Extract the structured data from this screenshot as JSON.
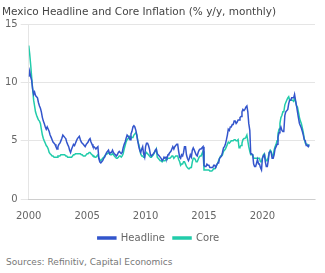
{
  "chart_data": {
    "type": "line",
    "title": "Mexico Headline and Core Inflation (% y/y, monthly)",
    "source": "Sources: Refinitiv, Capital Economics",
    "xlim": [
      2000.0,
      2024.5
    ],
    "xticks": [
      2000,
      2005,
      2010,
      2015,
      2020
    ],
    "ylim": [
      0,
      15
    ],
    "yticks": [
      0,
      5,
      10,
      15
    ],
    "grid": "y",
    "legend": "bottom",
    "x": [
      2000.0,
      2000.08,
      2000.17,
      2000.25,
      2000.33,
      2000.42,
      2000.5,
      2000.58,
      2000.67,
      2000.75,
      2000.83,
      2000.92,
      2001.0,
      2001.08,
      2001.17,
      2001.25,
      2001.33,
      2001.42,
      2001.5,
      2001.58,
      2001.67,
      2001.75,
      2001.83,
      2001.92,
      2002.0,
      2002.08,
      2002.17,
      2002.25,
      2002.33,
      2002.42,
      2002.5,
      2002.58,
      2002.67,
      2002.75,
      2002.83,
      2002.92,
      2003.0,
      2003.08,
      2003.17,
      2003.25,
      2003.33,
      2003.42,
      2003.5,
      2003.58,
      2003.67,
      2003.75,
      2003.83,
      2003.92,
      2004.0,
      2004.08,
      2004.17,
      2004.25,
      2004.33,
      2004.42,
      2004.5,
      2004.58,
      2004.67,
      2004.75,
      2004.83,
      2004.92,
      2005.0,
      2005.08,
      2005.17,
      2005.25,
      2005.33,
      2005.42,
      2005.5,
      2005.58,
      2005.67,
      2005.75,
      2005.83,
      2005.92,
      2006.0,
      2006.08,
      2006.17,
      2006.25,
      2006.33,
      2006.42,
      2006.5,
      2006.58,
      2006.67,
      2006.75,
      2006.83,
      2006.92,
      2007.0,
      2007.08,
      2007.17,
      2007.25,
      2007.33,
      2007.42,
      2007.5,
      2007.58,
      2007.67,
      2007.75,
      2007.83,
      2007.92,
      2008.0,
      2008.08,
      2008.17,
      2008.25,
      2008.33,
      2008.42,
      2008.5,
      2008.58,
      2008.67,
      2008.75,
      2008.83,
      2008.92,
      2009.0,
      2009.08,
      2009.17,
      2009.25,
      2009.33,
      2009.42,
      2009.5,
      2009.58,
      2009.67,
      2009.75,
      2009.83,
      2009.92,
      2010.0,
      2010.08,
      2010.17,
      2010.25,
      2010.33,
      2010.42,
      2010.5,
      2010.58,
      2010.67,
      2010.75,
      2010.83,
      2010.92,
      2011.0,
      2011.08,
      2011.17,
      2011.25,
      2011.33,
      2011.42,
      2011.5,
      2011.58,
      2011.67,
      2011.75,
      2011.83,
      2011.92,
      2012.0,
      2012.08,
      2012.17,
      2012.25,
      2012.33,
      2012.42,
      2012.5,
      2012.58,
      2012.67,
      2012.75,
      2012.83,
      2012.92,
      2013.0,
      2013.08,
      2013.17,
      2013.25,
      2013.33,
      2013.42,
      2013.5,
      2013.58,
      2013.67,
      2013.75,
      2013.83,
      2013.92,
      2014.0,
      2014.08,
      2014.17,
      2014.25,
      2014.33,
      2014.42,
      2014.5,
      2014.58,
      2014.67,
      2014.75,
      2014.83,
      2014.92,
      2015.0,
      2015.08,
      2015.17,
      2015.25,
      2015.33,
      2015.42,
      2015.5,
      2015.58,
      2015.67,
      2015.75,
      2015.83,
      2015.92,
      2016.0,
      2016.08,
      2016.17,
      2016.25,
      2016.33,
      2016.42,
      2016.5,
      2016.58,
      2016.67,
      2016.75,
      2016.83,
      2016.92,
      2017.0,
      2017.08,
      2017.17,
      2017.25,
      2017.33,
      2017.42,
      2017.5,
      2017.58,
      2017.67,
      2017.75,
      2017.83,
      2017.92,
      2018.0,
      2018.08,
      2018.17,
      2018.25,
      2018.33,
      2018.42,
      2018.5,
      2018.58,
      2018.67,
      2018.75,
      2018.83,
      2018.92,
      2019.0,
      2019.08,
      2019.17,
      2019.25,
      2019.33,
      2019.42,
      2019.5,
      2019.58,
      2019.67,
      2019.75,
      2019.83,
      2019.92,
      2020.0,
      2020.08,
      2020.17,
      2020.25,
      2020.33,
      2020.42,
      2020.5,
      2020.58,
      2020.67,
      2020.75,
      2020.83,
      2020.92,
      2021.0,
      2021.08,
      2021.17,
      2021.25,
      2021.33,
      2021.42,
      2021.5,
      2021.58,
      2021.67,
      2021.75,
      2021.83,
      2021.92,
      2022.0,
      2022.08,
      2022.17,
      2022.25,
      2022.33,
      2022.42,
      2022.5,
      2022.58,
      2022.67,
      2022.75,
      2022.83,
      2022.92,
      2023.0,
      2023.08,
      2023.17,
      2023.25,
      2023.33,
      2023.42,
      2023.5,
      2023.58,
      2023.67,
      2023.75,
      2023.83,
      2023.92,
      2024.0
    ],
    "series": [
      {
        "name": "Headline",
        "color": "#3355cc",
        "values": [
          10.5,
          11.0,
          10.5,
          10.2,
          9.5,
          9.0,
          9.2,
          8.9,
          8.8,
          8.7,
          8.3,
          8.0,
          7.8,
          7.5,
          7.0,
          6.7,
          6.5,
          6.2,
          6.0,
          6.2,
          6.0,
          5.8,
          5.5,
          5.3,
          5.1,
          4.9,
          4.8,
          4.7,
          4.5,
          4.3,
          4.5,
          4.7,
          4.8,
          5.0,
          5.2,
          5.5,
          5.4,
          5.3,
          5.2,
          4.9,
          4.7,
          4.5,
          4.2,
          4.0,
          4.3,
          4.5,
          4.7,
          4.6,
          4.8,
          5.0,
          5.2,
          5.3,
          5.4,
          5.1,
          4.9,
          4.8,
          4.7,
          4.6,
          4.5,
          4.7,
          4.8,
          4.9,
          5.1,
          5.2,
          4.9,
          4.7,
          4.5,
          4.5,
          4.4,
          4.3,
          4.4,
          4.5,
          3.5,
          3.2,
          3.1,
          3.2,
          3.3,
          3.5,
          3.6,
          3.8,
          4.0,
          4.1,
          4.2,
          3.9,
          4.0,
          4.0,
          4.2,
          4.0,
          3.9,
          3.8,
          3.7,
          3.8,
          4.0,
          4.1,
          4.0,
          3.9,
          4.0,
          4.4,
          4.7,
          4.9,
          5.2,
          5.5,
          5.4,
          5.3,
          5.1,
          5.6,
          5.8,
          6.2,
          6.3,
          6.2,
          5.9,
          5.5,
          5.0,
          4.5,
          4.2,
          4.0,
          4.3,
          4.5,
          3.9,
          3.6,
          4.5,
          4.8,
          4.8,
          4.6,
          4.3,
          3.8,
          3.7,
          3.8,
          3.9,
          4.0,
          4.2,
          4.3,
          3.9,
          3.8,
          3.7,
          3.6,
          3.5,
          3.3,
          3.4,
          3.6,
          3.5,
          3.6,
          3.5,
          3.8,
          3.9,
          4.0,
          4.1,
          4.3,
          4.5,
          4.3,
          4.5,
          4.6,
          4.7,
          4.7,
          4.1,
          3.6,
          3.5,
          3.8,
          3.7,
          4.0,
          4.5,
          4.5,
          3.8,
          3.5,
          3.3,
          3.5,
          3.8,
          3.6,
          4.2,
          4.4,
          4.2,
          4.0,
          3.8,
          3.7,
          4.0,
          4.2,
          4.3,
          4.3,
          4.4,
          4.5,
          2.9,
          2.8,
          2.8,
          3.0,
          2.9,
          2.9,
          2.7,
          2.7,
          2.7,
          2.7,
          2.9,
          2.9,
          2.7,
          2.9,
          3.1,
          3.1,
          3.5,
          3.6,
          3.7,
          4.0,
          4.4,
          4.5,
          4.7,
          5.1,
          5.5,
          6.0,
          5.9,
          6.2,
          6.2,
          6.4,
          6.4,
          6.7,
          6.7,
          6.5,
          6.6,
          6.8,
          6.8,
          7.0,
          7.1,
          7.5,
          7.7,
          7.6,
          7.7,
          7.9,
          8.0,
          7.5,
          6.5,
          5.9,
          3.9,
          3.9,
          3.8,
          3.0,
          2.8,
          2.8,
          3.1,
          3.4,
          3.0,
          3.0,
          2.7,
          2.5,
          3.5,
          3.7,
          3.8,
          3.2,
          2.8,
          2.8,
          3.3,
          4.0,
          4.1,
          4.0,
          3.5,
          3.5,
          3.8,
          4.3,
          4.5,
          4.7,
          5.3,
          5.7,
          6.0,
          6.2,
          5.9,
          5.8,
          5.8,
          7.2,
          7.5,
          7.6,
          7.7,
          8.2,
          8.5,
          8.5,
          8.7,
          8.7,
          8.7,
          9.0,
          8.5,
          8.0,
          7.5,
          7.0,
          6.5,
          6.3,
          6.1,
          5.8,
          5.5,
          5.1,
          5.0,
          4.6,
          4.6,
          4.5,
          4.7
        ]
      },
      {
        "name": "Core",
        "color": "#22ccaa",
        "values": [
          13.2,
          12.5,
          11.5,
          10.5,
          9.5,
          8.5,
          8.0,
          7.5,
          7.2,
          7.0,
          6.8,
          6.7,
          6.5,
          6.0,
          5.5,
          5.2,
          5.0,
          4.8,
          4.6,
          4.5,
          4.3,
          4.0,
          3.9,
          3.8,
          3.7,
          3.7,
          3.6,
          3.6,
          3.6,
          3.6,
          3.7,
          3.7,
          3.7,
          3.8,
          3.8,
          3.8,
          3.8,
          3.8,
          3.7,
          3.7,
          3.6,
          3.6,
          3.6,
          3.6,
          3.6,
          3.7,
          3.8,
          3.8,
          3.9,
          3.9,
          3.9,
          3.9,
          3.9,
          3.9,
          3.8,
          3.8,
          3.7,
          3.7,
          3.7,
          3.8,
          3.9,
          3.9,
          4.0,
          4.0,
          3.9,
          3.8,
          3.7,
          3.7,
          3.6,
          3.6,
          3.7,
          3.8,
          3.5,
          3.4,
          3.3,
          3.4,
          3.5,
          3.6,
          3.7,
          3.8,
          3.9,
          3.9,
          4.0,
          3.9,
          3.8,
          3.8,
          3.9,
          3.8,
          3.7,
          3.6,
          3.5,
          3.5,
          3.6,
          3.7,
          3.7,
          3.6,
          3.7,
          3.9,
          4.3,
          4.6,
          4.9,
          5.1,
          5.2,
          5.4,
          5.4,
          5.3,
          5.3,
          5.3,
          5.5,
          5.6,
          5.7,
          5.5,
          5.0,
          4.7,
          4.3,
          3.9,
          3.7,
          3.7,
          3.6,
          3.6,
          3.9,
          4.0,
          3.9,
          3.8,
          3.7,
          3.6,
          3.6,
          3.7,
          3.8,
          4.0,
          4.1,
          4.3,
          3.6,
          3.5,
          3.4,
          3.3,
          3.3,
          3.2,
          3.3,
          3.3,
          3.3,
          3.4,
          3.5,
          3.5,
          3.5,
          3.5,
          3.6,
          3.7,
          3.7,
          3.5,
          3.6,
          3.7,
          3.7,
          3.7,
          3.4,
          3.2,
          2.9,
          3.0,
          3.0,
          3.2,
          3.2,
          3.0,
          2.8,
          2.7,
          2.6,
          2.6,
          2.7,
          2.7,
          3.2,
          3.5,
          3.5,
          3.4,
          3.2,
          3.2,
          3.4,
          3.6,
          3.7,
          3.7,
          3.9,
          4.1,
          2.5,
          2.5,
          2.5,
          2.5,
          2.5,
          2.5,
          2.4,
          2.4,
          2.4,
          2.5,
          2.6,
          2.6,
          2.7,
          2.9,
          3.1,
          3.3,
          3.5,
          3.7,
          3.7,
          3.8,
          4.1,
          4.2,
          4.3,
          4.5,
          4.7,
          4.9,
          4.8,
          4.9,
          5.0,
          5.0,
          5.0,
          5.1,
          5.1,
          5.0,
          5.0,
          5.1,
          4.4,
          4.5,
          4.6,
          4.8,
          5.1,
          5.2,
          5.2,
          5.3,
          5.5,
          5.0,
          4.5,
          4.1,
          3.8,
          3.8,
          3.8,
          3.5,
          3.5,
          3.5,
          3.5,
          3.5,
          3.5,
          3.5,
          3.2,
          3.2,
          3.5,
          3.8,
          3.9,
          3.5,
          3.3,
          3.3,
          3.6,
          4.0,
          4.2,
          4.1,
          3.7,
          3.7,
          4.2,
          4.5,
          4.7,
          5.0,
          5.6,
          6.0,
          6.5,
          7.0,
          7.2,
          7.5,
          7.5,
          8.1,
          8.3,
          8.5,
          8.7,
          8.8,
          8.5,
          8.5,
          8.5,
          8.5,
          8.4,
          8.7,
          8.4,
          8.0,
          7.9,
          7.5,
          7.0,
          6.7,
          6.5,
          6.1,
          5.7,
          5.2,
          4.8,
          4.7,
          4.7,
          4.6,
          4.5
        ]
      }
    ]
  }
}
